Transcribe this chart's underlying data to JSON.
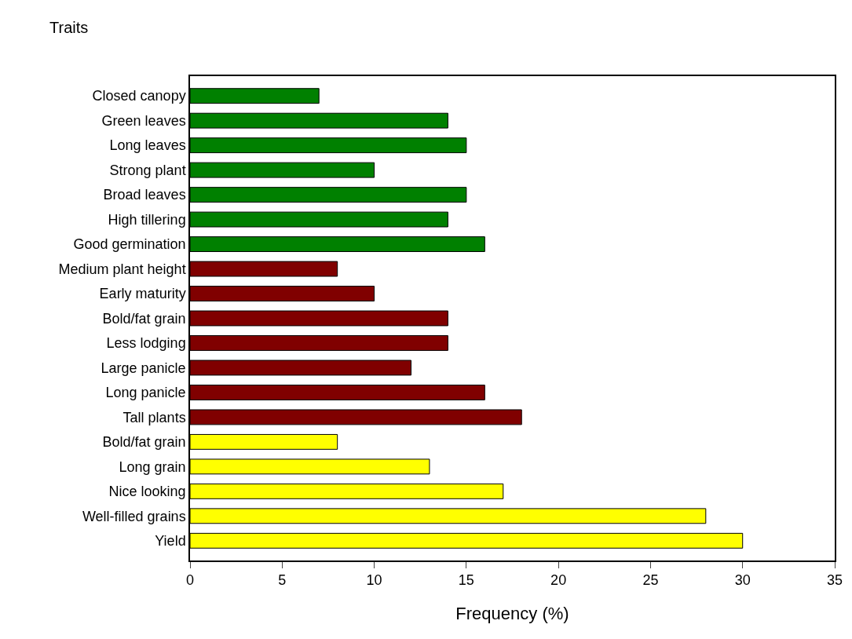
{
  "chart_data": {
    "type": "bar",
    "orientation": "horizontal",
    "ylabel": "Traits",
    "xlabel": "Frequency (%)",
    "categories": [
      "Closed canopy",
      "Green leaves",
      "Long leaves",
      "Strong plant",
      "Broad leaves",
      "High tillering",
      "Good germination",
      "Medium plant height",
      "Early maturity",
      "Bold/fat grain",
      "Less lodging",
      "Large panicle",
      "Long panicle",
      "Tall plants",
      "Bold/fat grain",
      "Long grain",
      "Nice looking",
      "Well-filled grains",
      "Yield"
    ],
    "values": [
      7,
      14,
      15,
      10,
      15,
      14,
      16,
      8,
      10,
      14,
      14,
      12,
      16,
      18,
      8,
      13,
      17,
      28,
      30
    ],
    "colors": [
      "#008000",
      "#008000",
      "#008000",
      "#008000",
      "#008000",
      "#008000",
      "#008000",
      "#800000",
      "#800000",
      "#800000",
      "#800000",
      "#800000",
      "#800000",
      "#800000",
      "#ffff00",
      "#ffff00",
      "#ffff00",
      "#ffff00",
      "#ffff00"
    ],
    "xlim": [
      0,
      35
    ],
    "xticks": [
      0,
      5,
      10,
      15,
      20,
      25,
      30,
      35
    ]
  }
}
